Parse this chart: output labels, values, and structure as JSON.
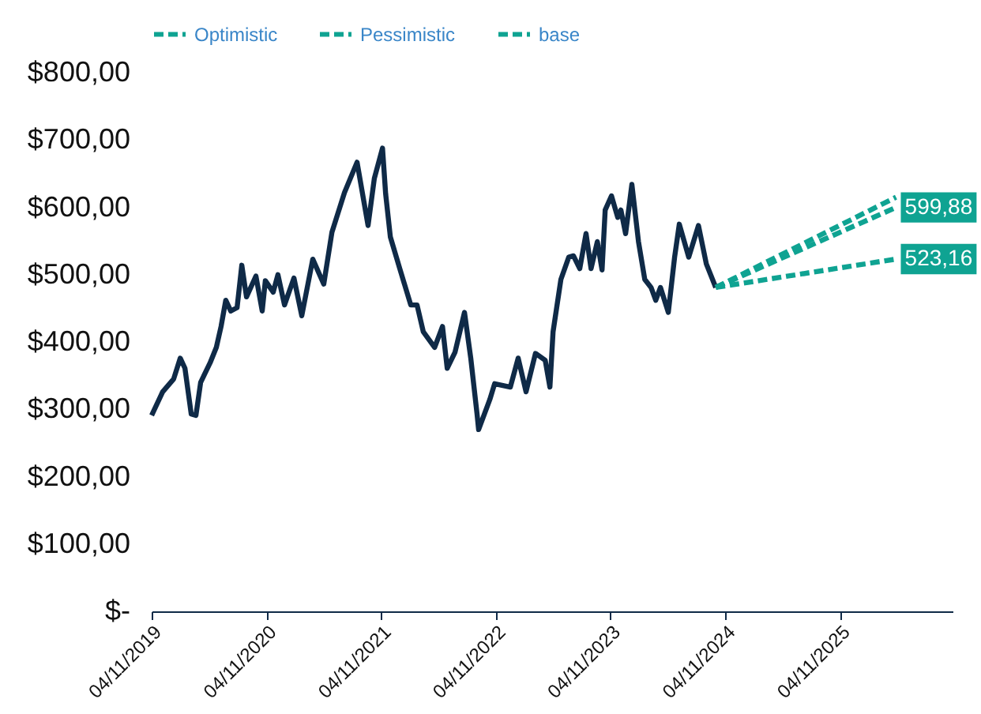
{
  "chart_data": {
    "type": "line",
    "legend": "top",
    "line_style": "solid",
    "marker": "none",
    "xlim": [
      "2019-11-04",
      "2026-10-28"
    ],
    "xticks": [
      {
        "value": "2019-11-04",
        "label": "04/11/2019"
      },
      {
        "value": "2020-11-04",
        "label": "04/11/2020"
      },
      {
        "value": "2021-11-04",
        "label": "04/11/2021"
      },
      {
        "value": "2022-11-04",
        "label": "04/11/2022"
      },
      {
        "value": "2023-11-04",
        "label": "04/11/2023"
      },
      {
        "value": "2024-11-04",
        "label": "04/11/2024"
      },
      {
        "value": "2025-11-04",
        "label": "04/11/2025"
      }
    ],
    "ylim": [
      0,
      800
    ],
    "yticks": [
      {
        "value": 0,
        "label": "$-"
      },
      {
        "value": 100,
        "label": "$100,00"
      },
      {
        "value": 200,
        "label": "$200,00"
      },
      {
        "value": 300,
        "label": "$300,00"
      },
      {
        "value": 400,
        "label": "$400,00"
      },
      {
        "value": 500,
        "label": "$500,00"
      },
      {
        "value": 600,
        "label": "$600,00"
      },
      {
        "value": 700,
        "label": "$700,00"
      },
      {
        "value": 800,
        "label": "$800,00"
      }
    ],
    "series": [
      {
        "color": "#0f2a47",
        "x": [
          "2019-11-04",
          "2019-12-09",
          "2020-01-13",
          "2020-02-03",
          "2020-02-18",
          "2020-03-09",
          "2020-03-24",
          "2020-04-08",
          "2020-05-08",
          "2020-05-28",
          "2020-06-12",
          "2020-06-27",
          "2020-07-13",
          "2020-08-02",
          "2020-08-17",
          "2020-09-01",
          "2020-10-01",
          "2020-10-21",
          "2020-10-31",
          "2020-11-25",
          "2020-12-10",
          "2020-12-31",
          "2021-01-30",
          "2021-02-24",
          "2021-03-31",
          "2021-05-05",
          "2021-05-31",
          "2021-07-10",
          "2021-08-19",
          "2021-09-23",
          "2021-10-13",
          "2021-11-08",
          "2021-11-18",
          "2021-12-03",
          "2022-01-02",
          "2022-02-06",
          "2022-02-26",
          "2022-03-18",
          "2022-04-23",
          "2022-05-18",
          "2022-06-02",
          "2022-06-27",
          "2022-07-27",
          "2022-08-16",
          "2022-09-05",
          "2022-09-10",
          "2022-10-16",
          "2022-10-31",
          "2022-12-20",
          "2023-01-14",
          "2023-02-08",
          "2023-03-10",
          "2023-04-10",
          "2023-04-25",
          "2023-05-05",
          "2023-05-30",
          "2023-06-24",
          "2023-07-09",
          "2023-07-29",
          "2023-08-18",
          "2023-09-03",
          "2023-09-23",
          "2023-10-08",
          "2023-10-18",
          "2023-11-07",
          "2023-11-27",
          "2023-12-07",
          "2023-12-22",
          "2024-01-11",
          "2024-02-01",
          "2024-02-21",
          "2024-03-12",
          "2024-03-27",
          "2024-04-11",
          "2024-05-06",
          "2024-05-26",
          "2024-06-10",
          "2024-07-10",
          "2024-08-10",
          "2024-09-04",
          "2024-10-04"
        ],
        "values": [
          291,
          326,
          345,
          376,
          361,
          293,
          291,
          340,
          369,
          392,
          423,
          462,
          446,
          451,
          514,
          467,
          498,
          446,
          491,
          474,
          500,
          455,
          495,
          439,
          523,
          486,
          563,
          622,
          667,
          573,
          643,
          688,
          620,
          556,
          509,
          455,
          455,
          415,
          392,
          423,
          361,
          385,
          444,
          376,
          293,
          270,
          315,
          338,
          333,
          376,
          326,
          383,
          373,
          333,
          415,
          493,
          526,
          528,
          509,
          561,
          509,
          549,
          507,
          596,
          617,
          585,
          596,
          561,
          634,
          549,
          493,
          481,
          462,
          481,
          444,
          526,
          575,
          526,
          573,
          516,
          481
        ]
      },
      {
        "name": "Optimistic",
        "color": "#0fa392",
        "line_style": "dashed",
        "x": [
          "2024-10-04",
          "2026-05-01"
        ],
        "values": [
          481,
          615
        ]
      },
      {
        "name": "Pessimistic",
        "color": "#0fa392",
        "line_style": "dashed",
        "x": [
          "2024-10-04",
          "2026-05-01"
        ],
        "values": [
          481,
          523.16
        ],
        "value_labels": [
          null,
          "523,16"
        ]
      },
      {
        "name": "base",
        "color": "#0fa392",
        "line_style": "dashed",
        "x": [
          "2024-10-04",
          "2026-05-01"
        ],
        "values": [
          481,
          599.88
        ],
        "value_labels": [
          null,
          "599,88"
        ]
      }
    ]
  }
}
